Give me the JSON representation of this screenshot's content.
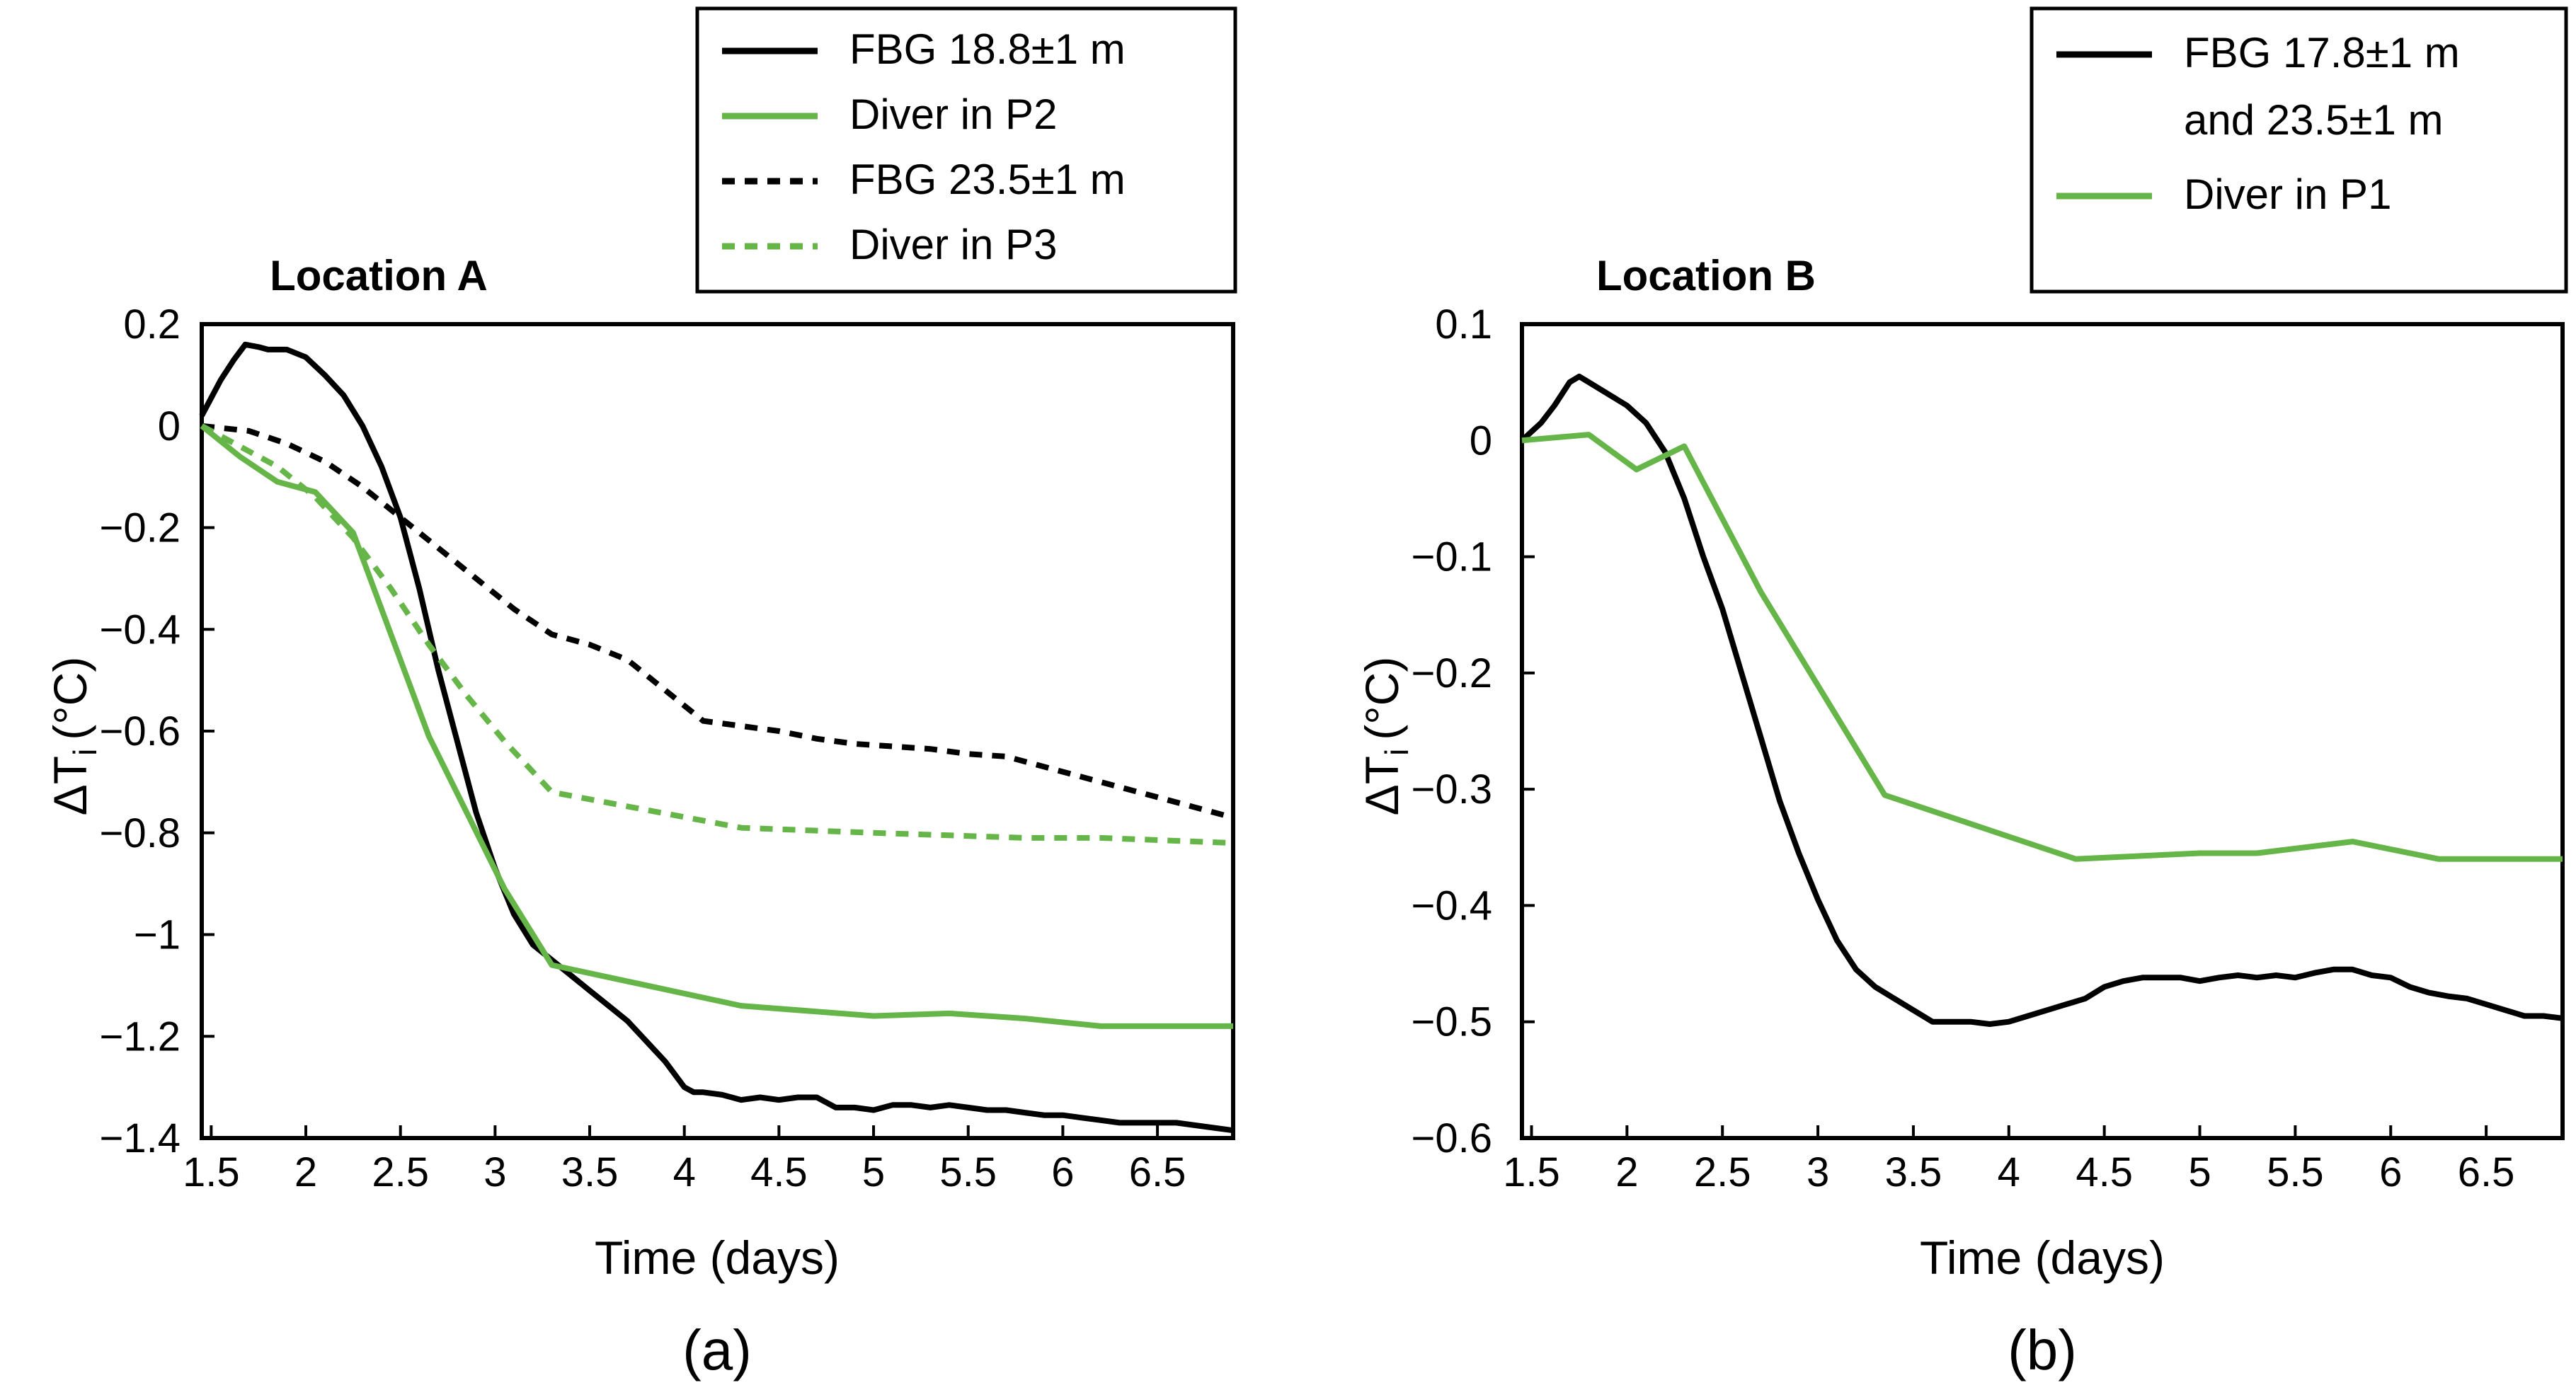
{
  "colors": {
    "fbg": "#000000",
    "diver": "#66b548"
  },
  "chart_data": [
    {
      "type": "line",
      "title": "Location A",
      "panel_label": "(a)",
      "xlabel": "Time (days)",
      "ylabel_main": "ΔT",
      "ylabel_sub": "i",
      "ylabel_unit": "(°C)",
      "xlim": [
        1.45,
        6.9
      ],
      "ylim": [
        -1.4,
        0.2
      ],
      "xticks": [
        1.5,
        2,
        2.5,
        3,
        3.5,
        4,
        4.5,
        5,
        5.5,
        6,
        6.5
      ],
      "xtick_labels": [
        "1.5",
        "2",
        "2.5",
        "3",
        "3.5",
        "4",
        "4.5",
        "5",
        "5.5",
        "6",
        "6.5"
      ],
      "yticks": [
        0.2,
        0,
        -0.2,
        -0.4,
        -0.6,
        -0.8,
        -1,
        -1.2,
        -1.4
      ],
      "ytick_labels": [
        "0.2",
        "0",
        "−0.2",
        "−0.4",
        "−0.6",
        "−0.8",
        "−1",
        "−1.2",
        "−1.4"
      ],
      "legend_placement": "top-right, outside above plot",
      "series": [
        {
          "name": "FBG 18.8±1 m",
          "color": "fbg",
          "dash": false,
          "x": [
            1.45,
            1.55,
            1.62,
            1.68,
            1.75,
            1.8,
            1.9,
            2.0,
            2.1,
            2.2,
            2.3,
            2.4,
            2.5,
            2.6,
            2.7,
            2.8,
            2.9,
            3.0,
            3.1,
            3.2,
            3.3,
            3.4,
            3.5,
            3.6,
            3.7,
            3.8,
            3.9,
            4.0,
            4.05,
            4.1,
            4.2,
            4.3,
            4.4,
            4.5,
            4.6,
            4.7,
            4.8,
            4.9,
            5.0,
            5.1,
            5.2,
            5.3,
            5.4,
            5.5,
            5.6,
            5.7,
            5.8,
            5.9,
            6.0,
            6.1,
            6.2,
            6.3,
            6.4,
            6.5,
            6.6,
            6.7,
            6.8,
            6.9
          ],
          "y": [
            0.02,
            0.09,
            0.13,
            0.16,
            0.155,
            0.15,
            0.15,
            0.135,
            0.1,
            0.06,
            0.0,
            -0.08,
            -0.18,
            -0.32,
            -0.48,
            -0.62,
            -0.76,
            -0.87,
            -0.96,
            -1.02,
            -1.05,
            -1.08,
            -1.11,
            -1.14,
            -1.17,
            -1.21,
            -1.25,
            -1.3,
            -1.31,
            -1.31,
            -1.315,
            -1.325,
            -1.32,
            -1.325,
            -1.32,
            -1.32,
            -1.34,
            -1.34,
            -1.345,
            -1.335,
            -1.335,
            -1.34,
            -1.335,
            -1.34,
            -1.345,
            -1.345,
            -1.35,
            -1.355,
            -1.355,
            -1.36,
            -1.365,
            -1.37,
            -1.37,
            -1.37,
            -1.37,
            -1.375,
            -1.38,
            -1.385
          ]
        },
        {
          "name": "Diver in P2",
          "color": "diver",
          "dash": false,
          "x": [
            1.45,
            1.65,
            1.85,
            2.05,
            2.25,
            2.45,
            2.65,
            2.85,
            3.05,
            3.3,
            4.3,
            5.0,
            5.4,
            5.8,
            6.2,
            6.9
          ],
          "y": [
            0.0,
            -0.06,
            -0.11,
            -0.13,
            -0.21,
            -0.41,
            -0.61,
            -0.76,
            -0.91,
            -1.06,
            -1.14,
            -1.16,
            -1.155,
            -1.165,
            -1.18,
            -1.18
          ]
        },
        {
          "name": "FBG 23.5±1 m",
          "color": "fbg",
          "dash": true,
          "x": [
            1.45,
            1.7,
            1.9,
            2.1,
            2.3,
            2.5,
            2.7,
            2.9,
            3.1,
            3.3,
            3.5,
            3.7,
            3.9,
            4.1,
            4.3,
            4.5,
            4.7,
            4.9,
            5.1,
            5.3,
            5.5,
            5.7,
            5.9,
            6.1,
            6.3,
            6.5,
            6.7,
            6.9
          ],
          "y": [
            0.0,
            -0.01,
            -0.035,
            -0.07,
            -0.12,
            -0.18,
            -0.24,
            -0.3,
            -0.36,
            -0.41,
            -0.43,
            -0.46,
            -0.52,
            -0.58,
            -0.59,
            -0.6,
            -0.615,
            -0.625,
            -0.63,
            -0.635,
            -0.645,
            -0.65,
            -0.67,
            -0.69,
            -0.71,
            -0.73,
            -0.75,
            -0.77
          ]
        },
        {
          "name": "Diver in P3",
          "color": "diver",
          "dash": true,
          "x": [
            1.45,
            1.65,
            1.85,
            2.05,
            2.25,
            2.45,
            2.65,
            2.85,
            3.05,
            3.3,
            4.3,
            5.0,
            5.4,
            5.8,
            6.2,
            6.9
          ],
          "y": [
            0.0,
            -0.04,
            -0.08,
            -0.14,
            -0.22,
            -0.32,
            -0.43,
            -0.53,
            -0.62,
            -0.72,
            -0.79,
            -0.8,
            -0.805,
            -0.81,
            -0.81,
            -0.82
          ]
        }
      ]
    },
    {
      "type": "line",
      "title": "Location B",
      "panel_label": "(b)",
      "xlabel": "Time (days)",
      "ylabel_main": "ΔT",
      "ylabel_sub": "i",
      "ylabel_unit": "(°C)",
      "xlim": [
        1.45,
        6.9
      ],
      "ylim": [
        -0.6,
        0.1
      ],
      "xticks": [
        1.5,
        2,
        2.5,
        3,
        3.5,
        4,
        4.5,
        5,
        5.5,
        6,
        6.5
      ],
      "xtick_labels": [
        "1.5",
        "2",
        "2.5",
        "3",
        "3.5",
        "4",
        "4.5",
        "5",
        "5.5",
        "6",
        "6.5"
      ],
      "yticks": [
        0.1,
        0,
        -0.1,
        -0.2,
        -0.3,
        -0.4,
        -0.5,
        -0.6
      ],
      "ytick_labels": [
        "0.1",
        "0",
        "−0.1",
        "−0.2",
        "−0.3",
        "−0.4",
        "−0.5",
        "−0.6"
      ],
      "legend_placement": "top-right, outside above plot",
      "series": [
        {
          "name": "FBG 17.8±1 m\nand 23.5±1 m",
          "color": "fbg",
          "dash": false,
          "x": [
            1.45,
            1.55,
            1.62,
            1.7,
            1.75,
            1.8,
            1.9,
            2.0,
            2.1,
            2.2,
            2.3,
            2.4,
            2.5,
            2.6,
            2.7,
            2.8,
            2.9,
            3.0,
            3.1,
            3.2,
            3.3,
            3.4,
            3.5,
            3.6,
            3.7,
            3.8,
            3.9,
            4.0,
            4.1,
            4.2,
            4.3,
            4.4,
            4.5,
            4.6,
            4.7,
            4.8,
            4.9,
            5.0,
            5.1,
            5.2,
            5.3,
            5.4,
            5.5,
            5.6,
            5.7,
            5.8,
            5.9,
            6.0,
            6.1,
            6.2,
            6.3,
            6.4,
            6.5,
            6.6,
            6.7,
            6.8,
            6.9
          ],
          "y": [
            0.0,
            0.015,
            0.03,
            0.05,
            0.055,
            0.05,
            0.04,
            0.03,
            0.015,
            -0.01,
            -0.05,
            -0.1,
            -0.145,
            -0.2,
            -0.255,
            -0.31,
            -0.355,
            -0.395,
            -0.43,
            -0.455,
            -0.47,
            -0.48,
            -0.49,
            -0.5,
            -0.5,
            -0.5,
            -0.502,
            -0.5,
            -0.495,
            -0.49,
            -0.485,
            -0.48,
            -0.47,
            -0.465,
            -0.462,
            -0.462,
            -0.462,
            -0.465,
            -0.462,
            -0.46,
            -0.462,
            -0.46,
            -0.462,
            -0.458,
            -0.455,
            -0.455,
            -0.46,
            -0.462,
            -0.47,
            -0.475,
            -0.478,
            -0.48,
            -0.485,
            -0.49,
            -0.495,
            -0.495,
            -0.497
          ]
        },
        {
          "name": "Diver in P1",
          "color": "diver",
          "dash": false,
          "x": [
            1.45,
            1.8,
            2.05,
            2.3,
            2.7,
            3.35,
            4.35,
            5.0,
            5.3,
            5.8,
            6.25,
            6.9
          ],
          "y": [
            0.0,
            0.005,
            -0.025,
            -0.005,
            -0.13,
            -0.305,
            -0.36,
            -0.355,
            -0.355,
            -0.345,
            -0.36,
            -0.36
          ]
        }
      ]
    }
  ]
}
